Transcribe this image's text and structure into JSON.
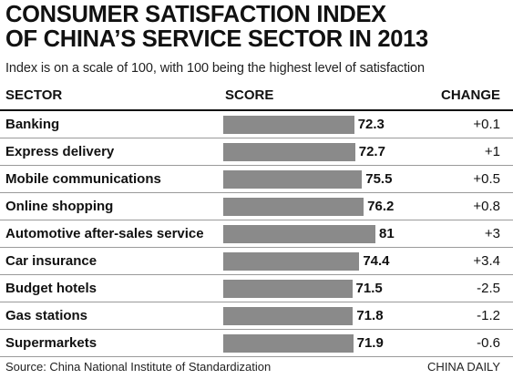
{
  "title_line1": "CONSUMER SATISFACTION INDEX",
  "title_line2": "OF CHINA’S SERVICE SECTOR IN 2013",
  "subtitle": "Index is on a scale of 100, with 100 being the highest level of satisfaction",
  "headers": {
    "sector": "SECTOR",
    "score": "SCORE",
    "change": "CHANGE"
  },
  "chart_data": {
    "type": "bar",
    "orientation": "horizontal",
    "categories": [
      "Banking",
      "Express delivery",
      "Mobile communications",
      "Online shopping",
      "Automotive after-sales service",
      "Car insurance",
      "Budget hotels",
      "Gas stations",
      "Supermarkets"
    ],
    "values": [
      72.3,
      72.7,
      75.5,
      76.2,
      81,
      74.4,
      71.5,
      71.8,
      71.9
    ],
    "value_labels": [
      "72.3",
      "72.7",
      "75.5",
      "76.2",
      "81",
      "74.4",
      "71.5",
      "71.8",
      "71.9"
    ],
    "change": [
      "+0.1",
      "+1",
      "+0.5",
      "+0.8",
      "+3",
      "+3.4",
      "-2.5",
      "-1.2",
      "-0.6"
    ],
    "title": "CONSUMER SATISFACTION INDEX OF CHINA’S SERVICE SECTOR IN 2013",
    "xlabel": "SCORE",
    "ylabel": "SECTOR",
    "bar_color": "#8a8a8a",
    "grid": false,
    "legend": "none"
  },
  "source": "Source: China National Institute of Standardization",
  "credit": "CHINA DAILY"
}
